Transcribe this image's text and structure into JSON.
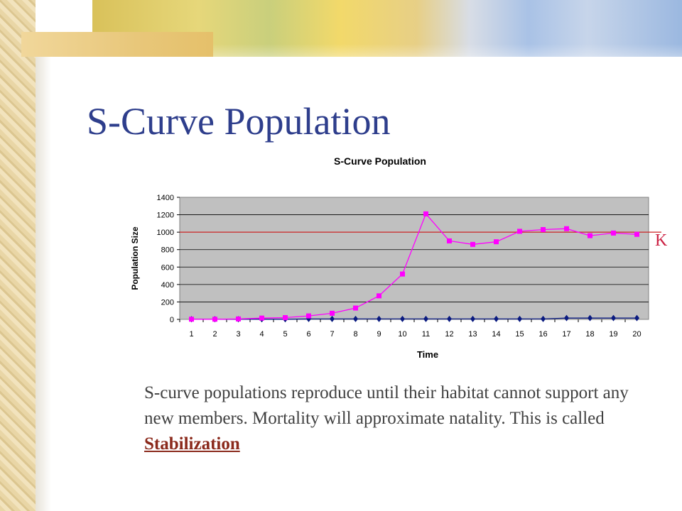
{
  "slide": {
    "title": "S-Curve Population",
    "body_text": "S-curve populations reproduce until their habitat cannot support any new members.  Mortality will approximate natality.  This is called ",
    "link_text": "Stabilization"
  },
  "chart_data": {
    "type": "line",
    "title": "S-Curve Population",
    "xlabel": "Time",
    "ylabel": "Population Size",
    "categories": [
      "1",
      "2",
      "3",
      "4",
      "5",
      "6",
      "7",
      "8",
      "9",
      "10",
      "11",
      "12",
      "13",
      "14",
      "15",
      "16",
      "17",
      "18",
      "19",
      "20"
    ],
    "series": [
      {
        "color": "#ff00ff",
        "marker": "square",
        "values": [
          2,
          2,
          5,
          15,
          20,
          40,
          70,
          130,
          270,
          520,
          1210,
          900,
          860,
          890,
          1010,
          1030,
          1040,
          960,
          990,
          975
        ]
      },
      {
        "color": "#0a1a80",
        "marker": "diamond",
        "values": [
          2,
          2,
          2,
          2,
          2,
          5,
          5,
          5,
          5,
          5,
          5,
          5,
          5,
          5,
          5,
          5,
          15,
          15,
          15,
          15
        ]
      }
    ],
    "ylim": [
      0,
      1400
    ],
    "yticks": [
      0,
      200,
      400,
      600,
      800,
      1000,
      1200,
      1400
    ],
    "reference_line": {
      "value": 1000,
      "label": "K",
      "color": "#cc2222"
    },
    "plot_background": "#c0c0c0",
    "grid": true,
    "legend": "none"
  }
}
